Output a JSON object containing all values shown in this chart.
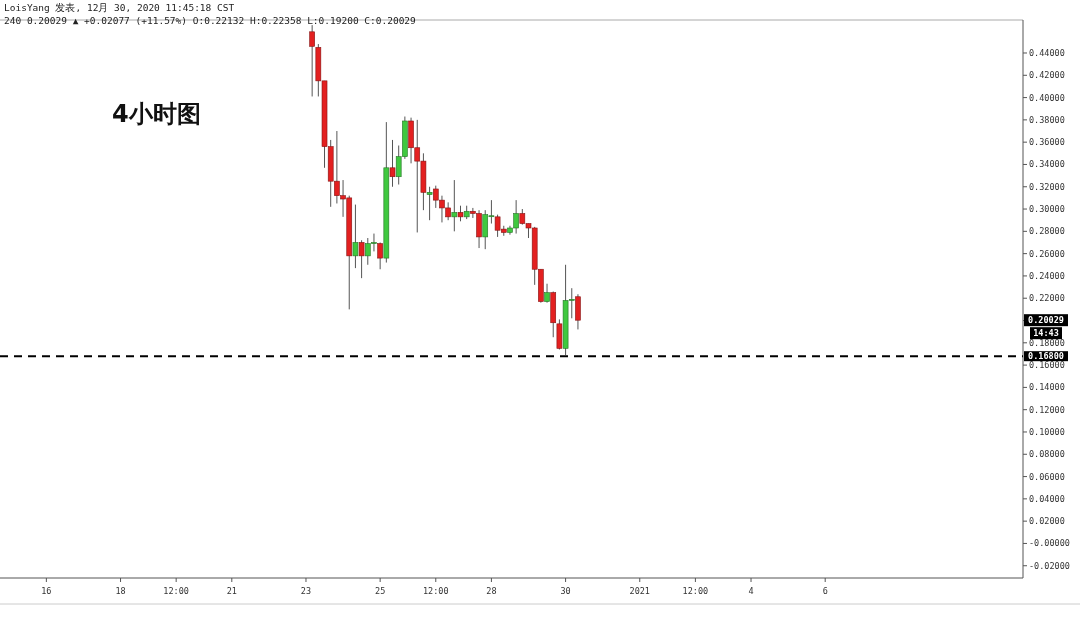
{
  "chart_data": {
    "type": "candlestick",
    "title": "LoisYang 发表, 12月 30, 2020 11:45:18 CST",
    "subtitle": "240 0.20029 ▲ +0.02077 (+11.57%) O:0.22132 H:0.22358 L:0.19200 C:0.20029",
    "annotations": [
      "4小时图",
      "0.20029",
      "14:43"
    ],
    "x": [
      "2020-12-23T04:00",
      "2020-12-23T08:00",
      "2020-12-23T12:00",
      "2020-12-23T16:00",
      "2020-12-23T20:00",
      "2020-12-24T00:00",
      "2020-12-24T04:00",
      "2020-12-24T08:00",
      "2020-12-24T12:00",
      "2020-12-24T16:00",
      "2020-12-24T20:00",
      "2020-12-25T00:00",
      "2020-12-25T04:00",
      "2020-12-25T08:00",
      "2020-12-25T12:00",
      "2020-12-25T16:00",
      "2020-12-25T20:00",
      "2020-12-26T00:00",
      "2020-12-26T04:00",
      "2020-12-26T08:00",
      "2020-12-26T12:00",
      "2020-12-26T16:00",
      "2020-12-26T20:00",
      "2020-12-27T00:00",
      "2020-12-27T04:00",
      "2020-12-27T08:00",
      "2020-12-27T12:00",
      "2020-12-27T16:00",
      "2020-12-27T20:00",
      "2020-12-28T00:00",
      "2020-12-28T04:00",
      "2020-12-28T08:00",
      "2020-12-28T12:00",
      "2020-12-28T16:00",
      "2020-12-28T20:00",
      "2020-12-29T00:00",
      "2020-12-29T04:00",
      "2020-12-29T08:00",
      "2020-12-29T12:00",
      "2020-12-29T16:00",
      "2020-12-29T20:00",
      "2020-12-30T00:00",
      "2020-12-30T04:00",
      "2020-12-30T08:00"
    ],
    "ohlc": [
      [
        0.459,
        0.465,
        0.401,
        0.446
      ],
      [
        0.445,
        0.448,
        0.401,
        0.415
      ],
      [
        0.415,
        0.415,
        0.337,
        0.356
      ],
      [
        0.356,
        0.362,
        0.302,
        0.325
      ],
      [
        0.325,
        0.37,
        0.305,
        0.312
      ],
      [
        0.312,
        0.326,
        0.293,
        0.309
      ],
      [
        0.31,
        0.312,
        0.21,
        0.258
      ],
      [
        0.258,
        0.304,
        0.247,
        0.27
      ],
      [
        0.27,
        0.272,
        0.238,
        0.258
      ],
      [
        0.258,
        0.274,
        0.25,
        0.269
      ],
      [
        0.269,
        0.278,
        0.262,
        0.27
      ],
      [
        0.269,
        0.27,
        0.246,
        0.256
      ],
      [
        0.256,
        0.378,
        0.252,
        0.337
      ],
      [
        0.337,
        0.362,
        0.32,
        0.329
      ],
      [
        0.329,
        0.357,
        0.322,
        0.347
      ],
      [
        0.347,
        0.383,
        0.345,
        0.379
      ],
      [
        0.379,
        0.382,
        0.341,
        0.355
      ],
      [
        0.355,
        0.38,
        0.279,
        0.343
      ],
      [
        0.343,
        0.35,
        0.299,
        0.315
      ],
      [
        0.313,
        0.32,
        0.29,
        0.315
      ],
      [
        0.318,
        0.321,
        0.301,
        0.308
      ],
      [
        0.308,
        0.312,
        0.288,
        0.301
      ],
      [
        0.301,
        0.306,
        0.29,
        0.293
      ],
      [
        0.293,
        0.326,
        0.28,
        0.297
      ],
      [
        0.297,
        0.303,
        0.289,
        0.293
      ],
      [
        0.293,
        0.303,
        0.291,
        0.298
      ],
      [
        0.298,
        0.301,
        0.292,
        0.296
      ],
      [
        0.296,
        0.299,
        0.265,
        0.275
      ],
      [
        0.275,
        0.299,
        0.264,
        0.295
      ],
      [
        0.294,
        0.308,
        0.287,
        0.294
      ],
      [
        0.293,
        0.295,
        0.275,
        0.281
      ],
      [
        0.282,
        0.285,
        0.276,
        0.279
      ],
      [
        0.279,
        0.285,
        0.277,
        0.283
      ],
      [
        0.283,
        0.308,
        0.278,
        0.296
      ],
      [
        0.296,
        0.3,
        0.286,
        0.287
      ],
      [
        0.287,
        0.287,
        0.274,
        0.283
      ],
      [
        0.283,
        0.284,
        0.232,
        0.246
      ],
      [
        0.246,
        0.246,
        0.216,
        0.217
      ],
      [
        0.217,
        0.233,
        0.216,
        0.225
      ],
      [
        0.225,
        0.226,
        0.185,
        0.198
      ],
      [
        0.197,
        0.201,
        0.174,
        0.175
      ],
      [
        0.175,
        0.25,
        0.169,
        0.218
      ],
      [
        0.218,
        0.229,
        0.202,
        0.219
      ],
      [
        0.22132,
        0.22358,
        0.192,
        0.20029
      ]
    ],
    "colors": [
      "#e32020",
      "#e32020",
      "#e32020",
      "#e32020",
      "#e32020",
      "#e32020",
      "#e32020",
      "#3fc83f",
      "#e32020",
      "#3fc83f",
      "#3fc83f",
      "#e32020",
      "#3fc83f",
      "#e32020",
      "#3fc83f",
      "#3fc83f",
      "#e32020",
      "#e32020",
      "#e32020",
      "#3fc83f",
      "#e32020",
      "#e32020",
      "#e32020",
      "#3fc83f",
      "#e32020",
      "#3fc83f",
      "#e32020",
      "#e32020",
      "#3fc83f",
      "#3fc83f",
      "#e32020",
      "#e32020",
      "#3fc83f",
      "#3fc83f",
      "#e32020",
      "#e32020",
      "#e32020",
      "#e32020",
      "#3fc83f",
      "#e32020",
      "#e32020",
      "#3fc83f",
      "#3fc83f",
      "#e32020"
    ],
    "xlim": [
      "2020-12-14T18:00",
      "2021-01-11T08:00"
    ],
    "xticks": [
      {
        "value": "2020-12-16",
        "label": "16"
      },
      {
        "value": "2020-12-18",
        "label": "18"
      },
      {
        "value": "2020-12-19T12:00",
        "label": "12:00"
      },
      {
        "value": "2020-12-21",
        "label": "21"
      },
      {
        "value": "2020-12-23",
        "label": "23"
      },
      {
        "value": "2020-12-25",
        "label": "25"
      },
      {
        "value": "2020-12-26T12:00",
        "label": "12:00"
      },
      {
        "value": "2020-12-28",
        "label": "28"
      },
      {
        "value": "2020-12-30",
        "label": "30"
      },
      {
        "value": "2021-01-01",
        "label": "2021"
      },
      {
        "value": "2021-01-02T12:00",
        "label": "12:00"
      },
      {
        "value": "2021-01-04",
        "label": "4"
      },
      {
        "value": "2021-01-06",
        "label": "6"
      }
    ],
    "ylim": [
      -0.031,
      0.4696
    ],
    "yticks": [
      {
        "value": 0.44,
        "label": "0.44000"
      },
      {
        "value": 0.42,
        "label": "0.42000"
      },
      {
        "value": 0.4,
        "label": "0.40000"
      },
      {
        "value": 0.38,
        "label": "0.38000"
      },
      {
        "value": 0.36,
        "label": "0.36000"
      },
      {
        "value": 0.34,
        "label": "0.34000"
      },
      {
        "value": 0.32,
        "label": "0.32000"
      },
      {
        "value": 0.3,
        "label": "0.30000"
      },
      {
        "value": 0.28,
        "label": "0.28000"
      },
      {
        "value": 0.26,
        "label": "0.26000"
      },
      {
        "value": 0.24,
        "label": "0.24000"
      },
      {
        "value": 0.22,
        "label": "0.22000"
      },
      {
        "value": 0.2,
        "label": null
      },
      {
        "value": 0.18,
        "label": "0.18000"
      },
      {
        "value": 0.16,
        "label": "0.16000"
      },
      {
        "value": 0.14,
        "label": "0.14000"
      },
      {
        "value": 0.12,
        "label": "0.12000"
      },
      {
        "value": 0.1,
        "label": "0.10000"
      },
      {
        "value": 0.08,
        "label": "0.08000"
      },
      {
        "value": 0.06,
        "label": "0.06000"
      },
      {
        "value": 0.04,
        "label": "0.04000"
      },
      {
        "value": 0.02,
        "label": "0.02000"
      },
      {
        "value": 0,
        "label": "-0.00000"
      },
      {
        "value": -0.02,
        "label": "-0.02000"
      }
    ],
    "ref_lines": [
      {
        "axis": "y",
        "value": 0.168,
        "label": "0.16800",
        "color": "#000000",
        "line_style": "dashed"
      }
    ]
  }
}
